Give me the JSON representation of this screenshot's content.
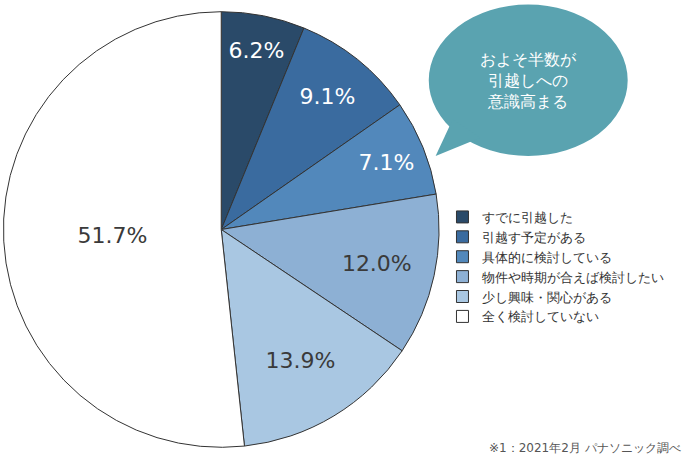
{
  "chart_data": {
    "type": "pie",
    "categories": [
      "すでに引越した",
      "引越す予定がある",
      "具体的に検討している",
      "物件や時期が合えば検討したい",
      "少し興味・関心がある",
      "全く検討していない"
    ],
    "values": [
      6.2,
      9.1,
      7.1,
      12.0,
      13.9,
      51.7
    ],
    "value_labels": [
      "6.2%",
      "9.1%",
      "7.1%",
      "12.0%",
      "13.9%",
      "51.7%"
    ],
    "colors": [
      "#2a4a69",
      "#3a6b9f",
      "#5288bb",
      "#8db0d4",
      "#a9c7e2",
      "#ffffff"
    ],
    "data_labels": true,
    "legend": "right",
    "annotations": [
      "およそ半数が\n引越しへの\n意識高まる",
      "※1：2021年2月 パナソニック調べ"
    ]
  }
}
